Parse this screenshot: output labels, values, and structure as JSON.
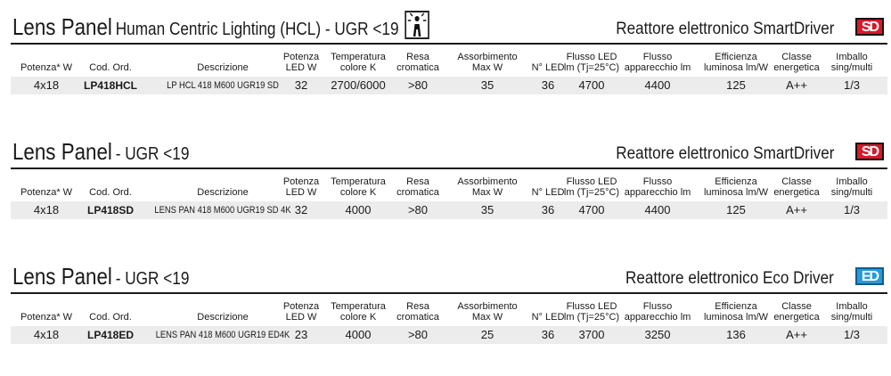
{
  "headers": {
    "power": "Potenza* W",
    "code": "Cod. Ord.",
    "description": "Descrizione",
    "led_power": [
      "Potenza",
      "LED W"
    ],
    "color_temp": [
      "Temperatura",
      "colore K"
    ],
    "cri": [
      "Resa",
      "cromatica"
    ],
    "consumption": [
      "Assorbimento",
      "Max W"
    ],
    "led_count": "N° LED",
    "led_flux": [
      "Flusso LED",
      "lm (Tj=25°C)"
    ],
    "fixture_flux": [
      "Flusso",
      "apparecchio lm"
    ],
    "efficiency": [
      "Efficienza",
      "luminosa lm/W"
    ],
    "energy_class": [
      "Classe",
      "energetica"
    ],
    "packaging": [
      "Imballo",
      "sing/multi"
    ]
  },
  "sections": [
    {
      "title_main": "Lens Panel",
      "title_sub": "Human Centric Lighting (HCL) - UGR <19",
      "has_hcl_icon": true,
      "hcl_icon": "human-centric-lighting-icon",
      "ballast": "Reattore elettronico SmartDriver",
      "badge": "SD",
      "badge_color": "#d7192b",
      "row": {
        "power": "4x18",
        "code": "LP418HCL",
        "description": "LP HCL 418 M600 UGR19 SD",
        "led_power": "32",
        "color_temp": "2700/6000",
        "cri": ">80",
        "consumption": "35",
        "led_count": "36",
        "led_flux": "4700",
        "fixture_flux": "4400",
        "efficiency": "125",
        "energy_class": "A++",
        "packaging": "1/3"
      }
    },
    {
      "title_main": "Lens Panel",
      "title_sub": "- UGR <19",
      "has_hcl_icon": false,
      "ballast": "Reattore elettronico SmartDriver",
      "badge": "SD",
      "badge_color": "#d7192b",
      "row": {
        "power": "4x18",
        "code": "LP418SD",
        "description": "LENS PAN 418 M600 UGR19 SD 4K",
        "led_power": "32",
        "color_temp": "4000",
        "cri": ">80",
        "consumption": "35",
        "led_count": "36",
        "led_flux": "4700",
        "fixture_flux": "4400",
        "efficiency": "125",
        "energy_class": "A++",
        "packaging": "1/3"
      }
    },
    {
      "title_main": "Lens Panel",
      "title_sub": "- UGR <19",
      "has_hcl_icon": false,
      "ballast": "Reattore elettronico Eco Driver",
      "badge": "ED",
      "badge_color": "#2a9ad6",
      "row": {
        "power": "4x18",
        "code": "LP418ED",
        "description": "LENS PAN 418 M600 UGR19 ED4K",
        "led_power": "23",
        "color_temp": "4000",
        "cri": ">80",
        "consumption": "25",
        "led_count": "36",
        "led_flux": "3700",
        "fixture_flux": "3250",
        "efficiency": "136",
        "energy_class": "A++",
        "packaging": "1/3"
      }
    }
  ]
}
